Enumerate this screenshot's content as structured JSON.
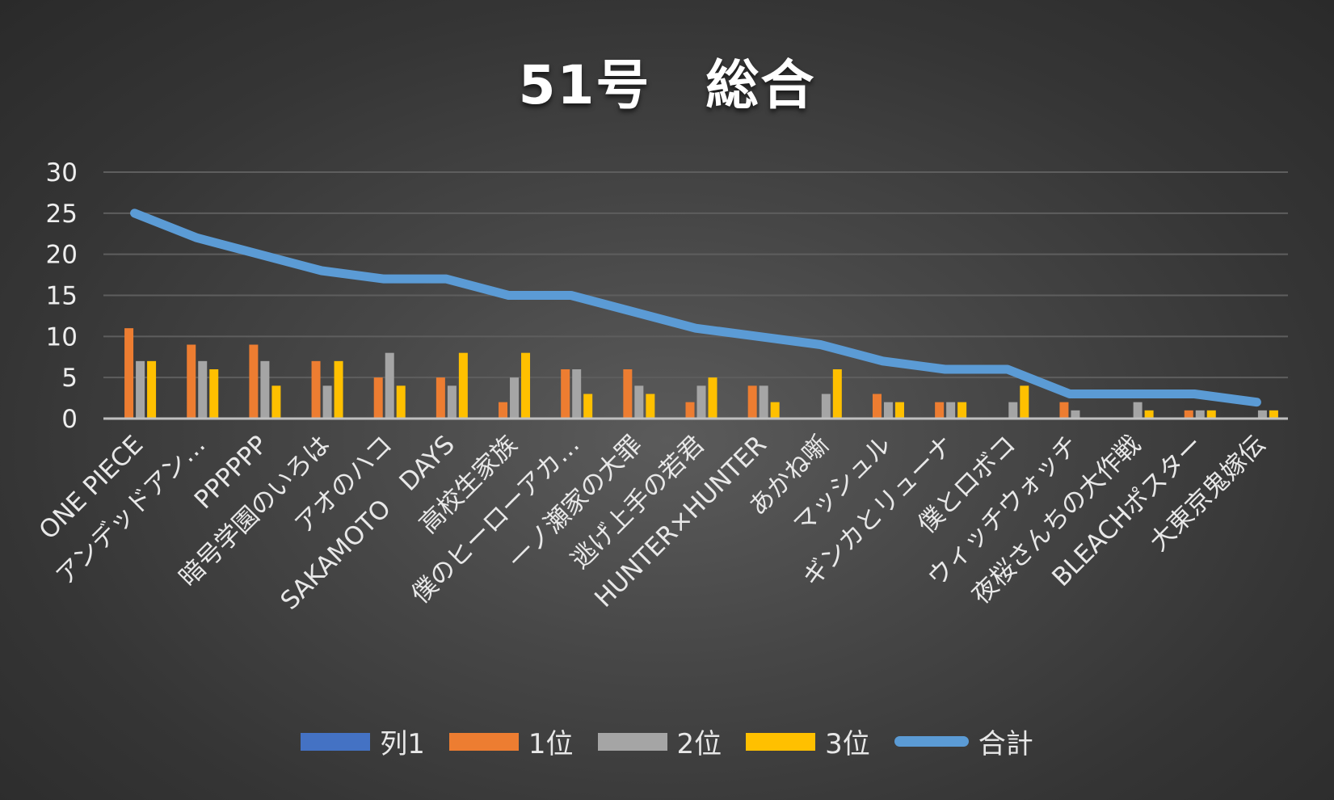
{
  "chart_data": {
    "type": "bar",
    "title": "51号　総合",
    "xlabel": "",
    "ylabel": "",
    "ylim": [
      0,
      30
    ],
    "yticks": [
      0,
      5,
      10,
      15,
      20,
      25,
      30
    ],
    "grid": true,
    "legend_position": "bottom",
    "categories": [
      "ONE PIECE",
      "アンデッドアン…",
      "PPPPPP",
      "暗号学園のいろは",
      "アオのハコ",
      "SAKAMOTO　DAYS",
      "高校生家族",
      "僕のヒーローアカ…",
      "一ノ瀬家の大罪",
      "逃げ上手の若君",
      "HUNTER×HUNTER",
      "あかね噺",
      "マッシュル",
      "ギンカとリューナ",
      "僕とロボコ",
      "ウィッチウォッチ",
      "夜桜さんちの大作戦",
      "BLEACHポスター",
      "大東京鬼嫁伝"
    ],
    "series": [
      {
        "name": "列1",
        "type": "bar",
        "color": "#4472c4",
        "values": [
          0,
          0,
          0,
          0,
          0,
          0,
          0,
          0,
          0,
          0,
          0,
          0,
          0,
          0,
          0,
          0,
          0,
          0,
          0
        ]
      },
      {
        "name": "1位",
        "type": "bar",
        "color": "#ed7d31",
        "values": [
          11,
          9,
          9,
          7,
          5,
          5,
          2,
          6,
          6,
          2,
          4,
          0,
          3,
          2,
          0,
          2,
          0,
          1,
          0
        ]
      },
      {
        "name": "2位",
        "type": "bar",
        "color": "#a5a5a5",
        "values": [
          7,
          7,
          7,
          4,
          8,
          4,
          5,
          6,
          4,
          4,
          4,
          3,
          2,
          2,
          2,
          1,
          2,
          1,
          1
        ]
      },
      {
        "name": "3位",
        "type": "bar",
        "color": "#ffc000",
        "values": [
          7,
          6,
          4,
          7,
          4,
          8,
          8,
          3,
          3,
          5,
          2,
          6,
          2,
          2,
          4,
          0,
          1,
          1,
          1
        ]
      },
      {
        "name": "合計",
        "type": "line",
        "color": "#5b9bd5",
        "values": [
          25,
          22,
          20,
          18,
          17,
          17,
          15,
          15,
          13,
          11,
          10,
          9,
          7,
          6,
          6,
          3,
          3,
          3,
          2
        ]
      }
    ]
  },
  "colors": {
    "background": "#404040",
    "gridline": "#5e5e5e",
    "axis": "#bfbfbf"
  }
}
